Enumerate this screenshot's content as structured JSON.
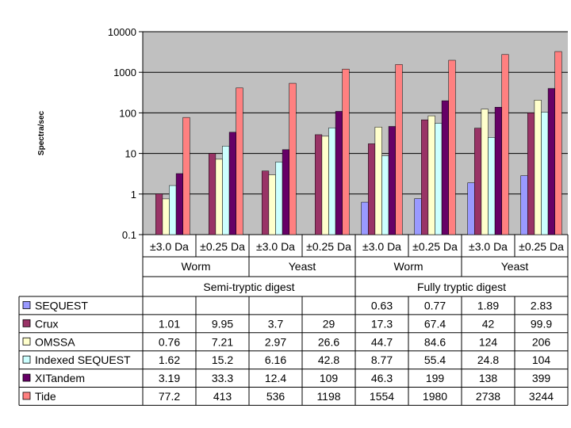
{
  "chart_data": {
    "type": "bar",
    "ylabel": "Spectra/sec",
    "scale": "log",
    "ylim": [
      0.1,
      10000
    ],
    "yticks": [
      "0.1",
      "1",
      "10",
      "100",
      "1000",
      "10000"
    ],
    "grid": true,
    "legend": "data-table",
    "categories": [
      "±3.0 Da",
      "±0.25 Da",
      "±3.0 Da",
      "±0.25 Da",
      "±3.0 Da",
      "±0.25 Da",
      "±3.0 Da",
      "±0.25 Da"
    ],
    "organisms": [
      "Worm",
      "Yeast",
      "Worm",
      "Yeast"
    ],
    "digests": [
      "Semi-tryptic digest",
      "Fully tryptic digest"
    ],
    "series": [
      {
        "name": "SEQUEST",
        "color": "#9999ff",
        "values": [
          null,
          null,
          null,
          null,
          0.63,
          0.77,
          1.89,
          2.83
        ],
        "labels": [
          "",
          "",
          "",
          "",
          "0.63",
          "0.77",
          "1.89",
          "2.83"
        ]
      },
      {
        "name": "Crux",
        "color": "#993366",
        "values": [
          1.01,
          9.95,
          3.7,
          29,
          17.3,
          67.4,
          42,
          99.9
        ],
        "labels": [
          "1.01",
          "9.95",
          "3.7",
          "29",
          "17.3",
          "67.4",
          "42",
          "99.9"
        ]
      },
      {
        "name": "OMSSA",
        "color": "#ffffcc",
        "values": [
          0.76,
          7.21,
          2.97,
          26.6,
          44.7,
          84.6,
          124,
          206
        ],
        "labels": [
          "0.76",
          "7.21",
          "2.97",
          "26.6",
          "44.7",
          "84.6",
          "124",
          "206"
        ]
      },
      {
        "name": "Indexed SEQUEST",
        "color": "#ccffff",
        "values": [
          1.62,
          15.2,
          6.16,
          42.8,
          8.77,
          55.4,
          24.8,
          104
        ],
        "labels": [
          "1.62",
          "15.2",
          "6.16",
          "42.8",
          "8.77",
          "55.4",
          "24.8",
          "104"
        ]
      },
      {
        "name": "XITandem",
        "color": "#660066",
        "values": [
          3.19,
          33.3,
          12.4,
          109,
          46.3,
          199,
          138,
          399
        ],
        "labels": [
          "3.19",
          "33.3",
          "12.4",
          "109",
          "46.3",
          "199",
          "138",
          "399"
        ]
      },
      {
        "name": "Tide",
        "color": "#ff8080",
        "values": [
          77.2,
          413,
          536,
          1198,
          1554,
          1980,
          2738,
          3244
        ],
        "labels": [
          "77.2",
          "413",
          "536",
          "1198",
          "1554",
          "1980",
          "2738",
          "3244"
        ]
      }
    ]
  }
}
